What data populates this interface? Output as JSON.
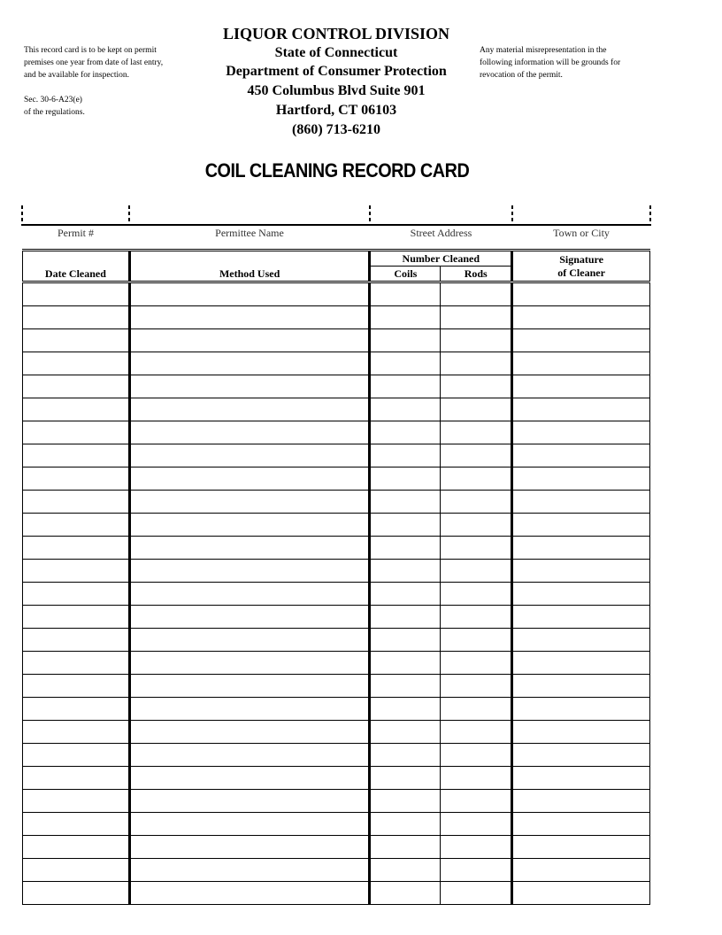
{
  "left_note": [
    "This record card is to be kept on permit",
    "premises one year from date of last entry,",
    "and be available for inspection."
  ],
  "regulation": [
    "Sec. 30-6-A23(e)",
    "of the regulations."
  ],
  "right_note": [
    "Any material misrepresentation in the",
    "following information will be grounds for",
    "revocation of the permit."
  ],
  "header": {
    "division": "LIQUOR CONTROL DIVISION",
    "state": "State of Connecticut",
    "department": "Department of Consumer Protection",
    "address": "450 Columbus Blvd Suite 901",
    "city": "Hartford, CT 06103",
    "phone": "(860) 713-6210"
  },
  "title": "COIL CLEANING RECORD CARD",
  "fields": [
    "Permit #",
    "Permittee Name",
    "Street Address",
    "Town or City"
  ],
  "table": {
    "date": "Date Cleaned",
    "method": "Method Used",
    "number": "Number Cleaned",
    "coils": "Coils",
    "rods": "Rods",
    "signature1": "Signature",
    "signature2": "of Cleaner"
  },
  "row_count": 27
}
